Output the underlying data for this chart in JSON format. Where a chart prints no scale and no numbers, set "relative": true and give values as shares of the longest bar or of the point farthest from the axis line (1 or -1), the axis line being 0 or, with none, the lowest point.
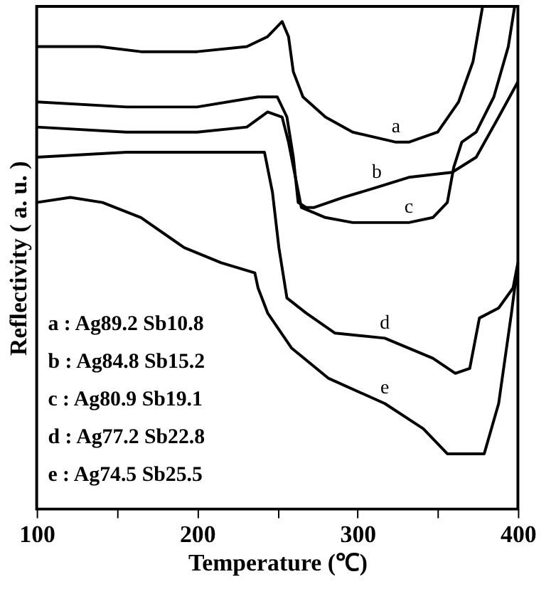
{
  "chart_data": {
    "type": "line",
    "relative": true,
    "xlabel": "Temperature (℃)",
    "ylabel": "Reflectivity ( a. u. )",
    "xlim": [
      100,
      400
    ],
    "xticks": [
      100,
      {
        "value": 150,
        "label": null
      },
      200,
      {
        "value": 250,
        "label": null
      },
      300,
      {
        "value": 350,
        "label": null
      },
      400
    ],
    "grid": false,
    "legend": false,
    "marker": "none",
    "line_style": "solid",
    "series": [
      {
        "name": "a",
        "color": "#000000",
        "x": [
          100,
          139,
          165,
          200,
          231,
          244,
          253,
          257,
          260,
          266,
          280,
          297,
          324,
          332,
          350,
          363,
          372,
          378
        ],
        "values": [
          0.92,
          0.92,
          0.91,
          0.91,
          0.92,
          0.94,
          0.97,
          0.94,
          0.87,
          0.82,
          0.78,
          0.75,
          0.73,
          0.73,
          0.75,
          0.81,
          0.89,
          1.0
        ]
      },
      {
        "name": "b",
        "color": "#000000",
        "x": [
          100,
          156,
          200,
          238,
          250,
          256,
          260,
          263,
          268,
          273,
          291,
          312,
          332,
          359,
          374,
          388,
          400
        ],
        "values": [
          0.81,
          0.8,
          0.8,
          0.82,
          0.82,
          0.78,
          0.7,
          0.61,
          0.6,
          0.6,
          0.62,
          0.64,
          0.66,
          0.67,
          0.7,
          0.78,
          0.85
        ]
      },
      {
        "name": "c",
        "color": "#000000",
        "x": [
          100,
          156,
          200,
          231,
          244,
          253,
          257,
          265,
          280,
          297,
          332,
          347,
          356,
          360,
          365,
          374,
          385,
          394,
          398
        ],
        "values": [
          0.76,
          0.75,
          0.75,
          0.76,
          0.79,
          0.78,
          0.73,
          0.6,
          0.58,
          0.57,
          0.57,
          0.58,
          0.61,
          0.68,
          0.73,
          0.75,
          0.82,
          0.92,
          1.0
        ]
      },
      {
        "name": "d",
        "color": "#000000",
        "x": [
          100,
          156,
          200,
          236,
          242,
          247,
          251,
          256,
          268,
          286,
          317,
          347,
          361,
          370,
          376,
          388,
          397,
          400
        ],
        "values": [
          0.7,
          0.71,
          0.71,
          0.71,
          0.71,
          0.63,
          0.52,
          0.42,
          0.39,
          0.35,
          0.34,
          0.3,
          0.27,
          0.28,
          0.38,
          0.4,
          0.44,
          0.49
        ]
      },
      {
        "name": "e",
        "color": "#000000",
        "x": [
          100,
          121,
          141,
          165,
          192,
          215,
          236,
          238,
          244,
          259,
          282,
          317,
          341,
          356,
          379,
          388,
          396,
          398,
          400
        ],
        "values": [
          0.61,
          0.62,
          0.61,
          0.58,
          0.52,
          0.49,
          0.47,
          0.44,
          0.39,
          0.32,
          0.26,
          0.21,
          0.16,
          0.11,
          0.11,
          0.21,
          0.39,
          0.44,
          0.47
        ]
      }
    ],
    "annotations": [
      "a : Ag89.2 Sb10.8",
      "b : Ag84.8 Sb15.2",
      "c : Ag80.9 Sb19.1",
      "d : Ag77.2 Sb22.8",
      "e : Ag74.5 Sb25.5"
    ]
  }
}
